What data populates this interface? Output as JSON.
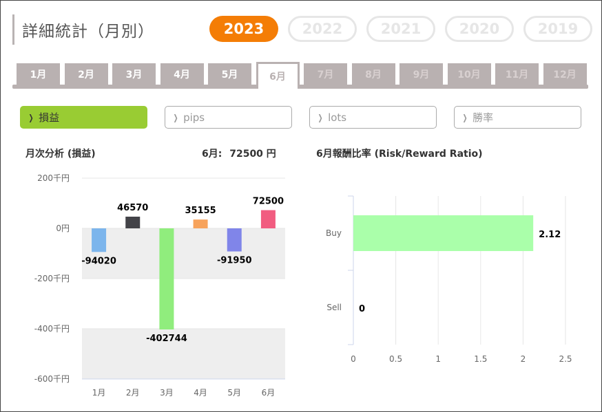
{
  "header": {
    "title": "詳細統計（月別）"
  },
  "years": [
    {
      "label": "2023",
      "active": true
    },
    {
      "label": "2022",
      "active": false
    },
    {
      "label": "2021",
      "active": false
    },
    {
      "label": "2020",
      "active": false
    },
    {
      "label": "2019",
      "active": false
    }
  ],
  "months": [
    {
      "label": "1月",
      "state": "past"
    },
    {
      "label": "2月",
      "state": "past"
    },
    {
      "label": "3月",
      "state": "past"
    },
    {
      "label": "4月",
      "state": "past"
    },
    {
      "label": "5月",
      "state": "past"
    },
    {
      "label": "6月",
      "state": "active"
    },
    {
      "label": "7月",
      "state": "future"
    },
    {
      "label": "8月",
      "state": "future"
    },
    {
      "label": "9月",
      "state": "future"
    },
    {
      "label": "10月",
      "state": "future"
    },
    {
      "label": "11月",
      "state": "future"
    },
    {
      "label": "12月",
      "state": "future"
    }
  ],
  "metrics": [
    {
      "label": "損益",
      "active": true
    },
    {
      "label": "pips",
      "active": false
    },
    {
      "label": "lots",
      "active": false
    },
    {
      "label": "勝率",
      "active": false
    }
  ],
  "left_panel": {
    "title": "月次分析 (損益)",
    "summary_label": "6月:",
    "summary_value": "72500 円"
  },
  "right_panel": {
    "title": "6月報酬比率 (Risk/Reward Ratio)"
  },
  "chart_data": [
    {
      "type": "bar",
      "categories": [
        "1月",
        "2月",
        "3月",
        "4月",
        "5月",
        "6月"
      ],
      "values": [
        -94020,
        46570,
        -402744,
        35155,
        -91950,
        72500
      ],
      "value_labels": [
        "-94020",
        "46570",
        "-402744",
        "35155",
        "-91950",
        "72500"
      ],
      "colors": [
        "#7cb5ec",
        "#434348",
        "#90ed7d",
        "#f7a35c",
        "#8085e9",
        "#f15c80"
      ],
      "yticks": [
        200000,
        0,
        -200000,
        -400000,
        -600000
      ],
      "ytick_labels": [
        "200千円",
        "0円",
        "-200千円",
        "-400千円",
        "-600千円"
      ],
      "ylim": [
        -600000,
        200000
      ],
      "band_fill": "#eeeeee"
    },
    {
      "type": "bar",
      "orientation": "horizontal",
      "categories": [
        "Buy",
        "Sell"
      ],
      "values": [
        2.12,
        0
      ],
      "value_labels": [
        "2.12",
        "0"
      ],
      "color": "#aaffaa",
      "xticks": [
        0,
        0.5,
        1,
        1.5,
        2,
        2.5
      ],
      "xtick_labels": [
        "0",
        "0.5",
        "1",
        "1.5",
        "2",
        "2.5"
      ],
      "xlim": [
        0,
        2.5
      ]
    }
  ]
}
